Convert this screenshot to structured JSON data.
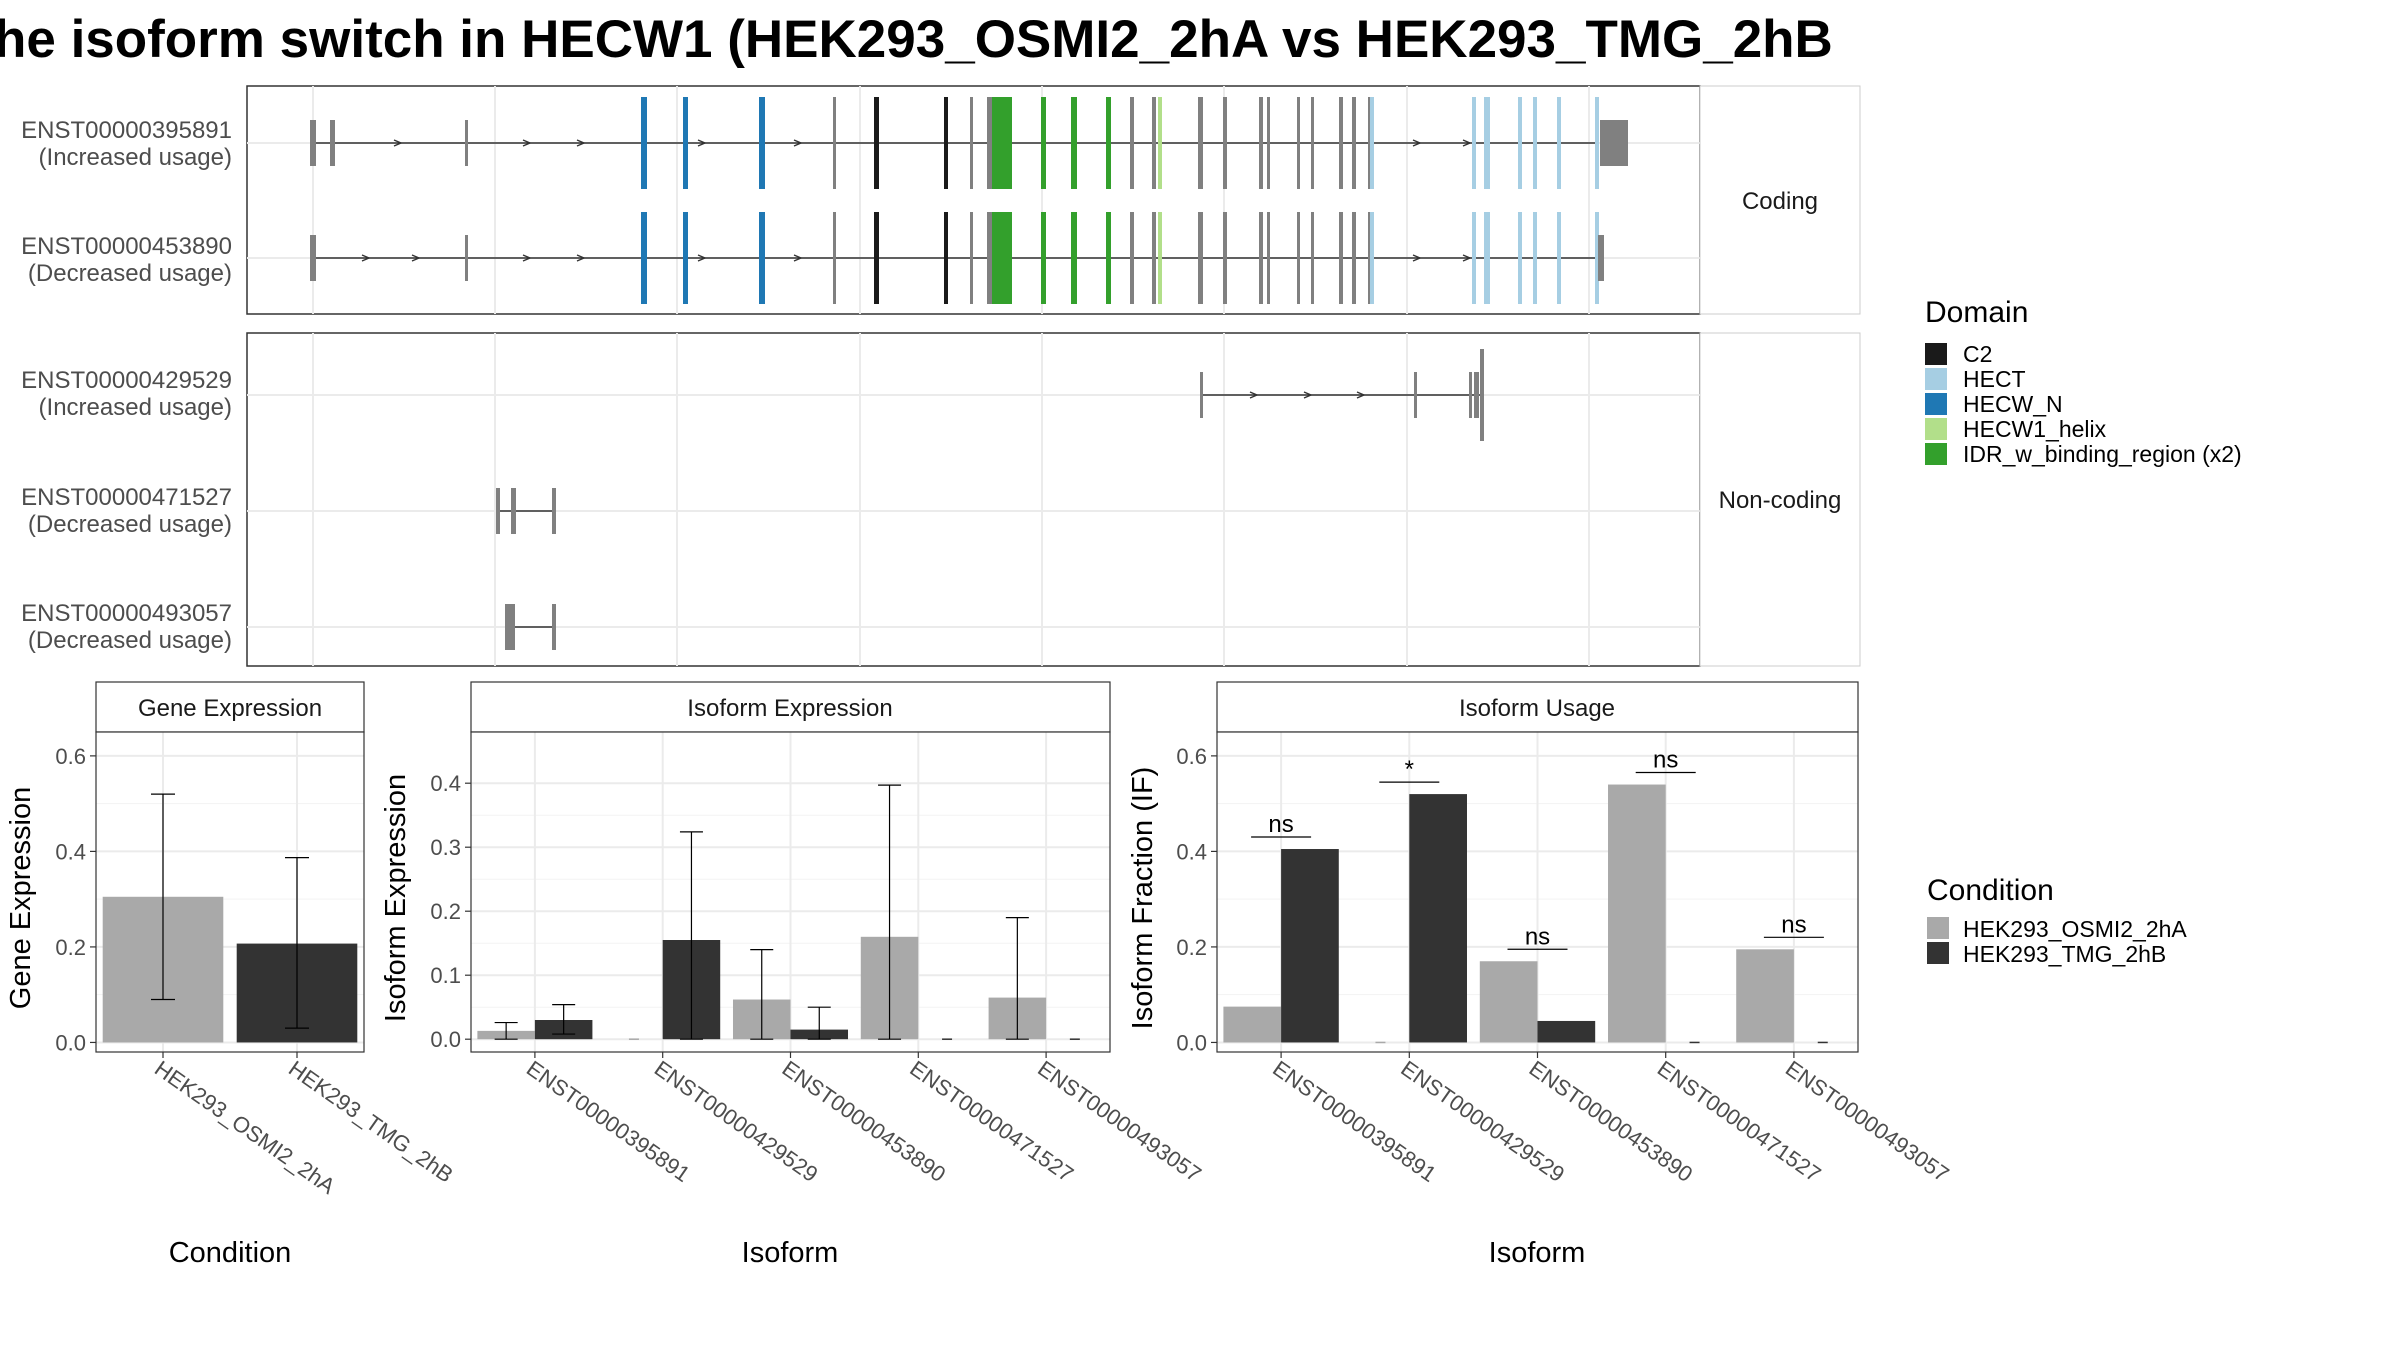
{
  "title": "he isoform switch in HECW1 (HEK293_OSMI2_2hA vs HEK293_TMG_2hB",
  "colors": {
    "exon_default": "#808080",
    "C2": "#1a1a1a",
    "HECT": "#a6cee3",
    "HECW_N": "#1f78b4",
    "HECW1_helix": "#b2df8a",
    "IDR_w_binding_region (x2)": "#33a02c",
    "cond_A": "#a9a9a9",
    "cond_B": "#333333"
  },
  "structure": {
    "panels": [
      {
        "label": "Coding",
        "transcripts": [
          {
            "id": "ENST00000395891",
            "usage": "(Increased usage)"
          },
          {
            "id": "ENST00000453890",
            "usage": "(Decreased usage)"
          }
        ]
      },
      {
        "label": "Non-coding",
        "transcripts": [
          {
            "id": "ENST00000429529",
            "usage": "(Increased usage)"
          },
          {
            "id": "ENST00000471527",
            "usage": "(Decreased usage)"
          },
          {
            "id": "ENST00000493057",
            "usage": "(Decreased usage)"
          }
        ]
      }
    ]
  },
  "legend_domain": {
    "title": "Domain",
    "items": [
      "C2",
      "HECT",
      "HECW_N",
      "HECW1_helix",
      "IDR_w_binding_region (x2)"
    ]
  },
  "legend_condition": {
    "title": "Condition",
    "items": [
      "HEK293_OSMI2_2hA",
      "HEK293_TMG_2hB"
    ]
  },
  "chart_data": [
    {
      "type": "bar",
      "title": "Gene Expression",
      "xlabel": "Condition",
      "ylabel": "Gene Expression",
      "ylim": [
        -0.02,
        0.65
      ],
      "yticks": [
        "0.0",
        "0.2",
        "0.4",
        "0.6"
      ],
      "categories": [
        "HEK293_OSMI2_2hA",
        "HEK293_TMG_2hB"
      ],
      "values": [
        0.305,
        0.207
      ],
      "error_low": [
        0.09,
        0.03
      ],
      "error_high": [
        0.52,
        0.387
      ]
    },
    {
      "type": "bar",
      "title": "Isoform Expression",
      "xlabel": "Isoform",
      "ylabel": "Isoform Expression",
      "ylim": [
        -0.02,
        0.48
      ],
      "yticks": [
        "0.0",
        "0.1",
        "0.2",
        "0.3",
        "0.4"
      ],
      "categories": [
        "ENST00000395891",
        "ENST00000429529",
        "ENST00000453890",
        "ENST00000471527",
        "ENST00000493057"
      ],
      "series": [
        {
          "name": "HEK293_OSMI2_2hA",
          "values": [
            0.013,
            0.0,
            0.062,
            0.16,
            0.065
          ],
          "error_low": [
            0.0,
            null,
            0.0,
            0.0,
            0.0
          ],
          "error_high": [
            0.026,
            null,
            0.14,
            0.397,
            0.19
          ]
        },
        {
          "name": "HEK293_TMG_2hB",
          "values": [
            0.03,
            0.155,
            0.015,
            0.0,
            0.0
          ],
          "error_low": [
            0.008,
            0.0,
            0.0,
            null,
            null
          ],
          "error_high": [
            0.054,
            0.324,
            0.05,
            null,
            null
          ]
        }
      ]
    },
    {
      "type": "bar",
      "title": "Isoform Usage",
      "xlabel": "Isoform",
      "ylabel": "Isoform Fraction (IF)",
      "ylim": [
        -0.02,
        0.65
      ],
      "yticks": [
        "0.0",
        "0.2",
        "0.4",
        "0.6"
      ],
      "categories": [
        "ENST00000395891",
        "ENST00000429529",
        "ENST00000453890",
        "ENST00000471527",
        "ENST00000493057"
      ],
      "series": [
        {
          "name": "HEK293_OSMI2_2hA",
          "values": [
            0.075,
            0.0,
            0.17,
            0.54,
            0.195
          ]
        },
        {
          "name": "HEK293_TMG_2hB",
          "values": [
            0.405,
            0.52,
            0.045,
            0.0,
            0.0
          ]
        }
      ],
      "significance": [
        "ns",
        "*",
        "ns",
        "ns",
        "ns"
      ]
    }
  ]
}
